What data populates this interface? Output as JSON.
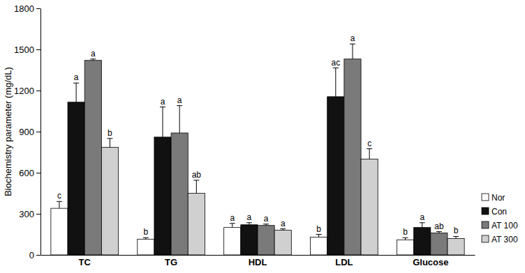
{
  "chart_data": {
    "type": "bar",
    "y_label": "Biochemistry parameter (mg/dL)",
    "categories": [
      "TC",
      "TG",
      "HDL",
      "LDL",
      "Glucose"
    ],
    "series": [
      {
        "name": "Nor",
        "color": "#ffffff",
        "values": [
          340,
          115,
          200,
          130,
          110
        ],
        "errors": [
          50,
          10,
          30,
          20,
          15
        ],
        "annotations": [
          "c",
          "b",
          "a",
          "b",
          "b"
        ]
      },
      {
        "name": "Con",
        "color": "#111111",
        "values": [
          1115,
          860,
          220,
          1155,
          200
        ],
        "errors": [
          140,
          220,
          15,
          210,
          35
        ],
        "annotations": [
          "a",
          "a",
          "a",
          "ac",
          "a"
        ]
      },
      {
        "name": "AT 100",
        "color": "#7a7a7a",
        "values": [
          1420,
          890,
          215,
          1430,
          160
        ],
        "errors": [
          10,
          200,
          10,
          110,
          10
        ],
        "annotations": [
          "a",
          "a",
          "a",
          "a",
          "ab"
        ]
      },
      {
        "name": "AT 300",
        "color": "#d0d0d0",
        "values": [
          785,
          450,
          180,
          700,
          120
        ],
        "errors": [
          65,
          95,
          10,
          75,
          15
        ],
        "annotations": [
          "b",
          "ab",
          "a",
          "c",
          "b"
        ]
      }
    ],
    "ylim": [
      0,
      1800
    ],
    "yticks": [
      0,
      300,
      600,
      900,
      1200,
      1500,
      1800
    ],
    "grid": false,
    "legend": "lower right"
  }
}
